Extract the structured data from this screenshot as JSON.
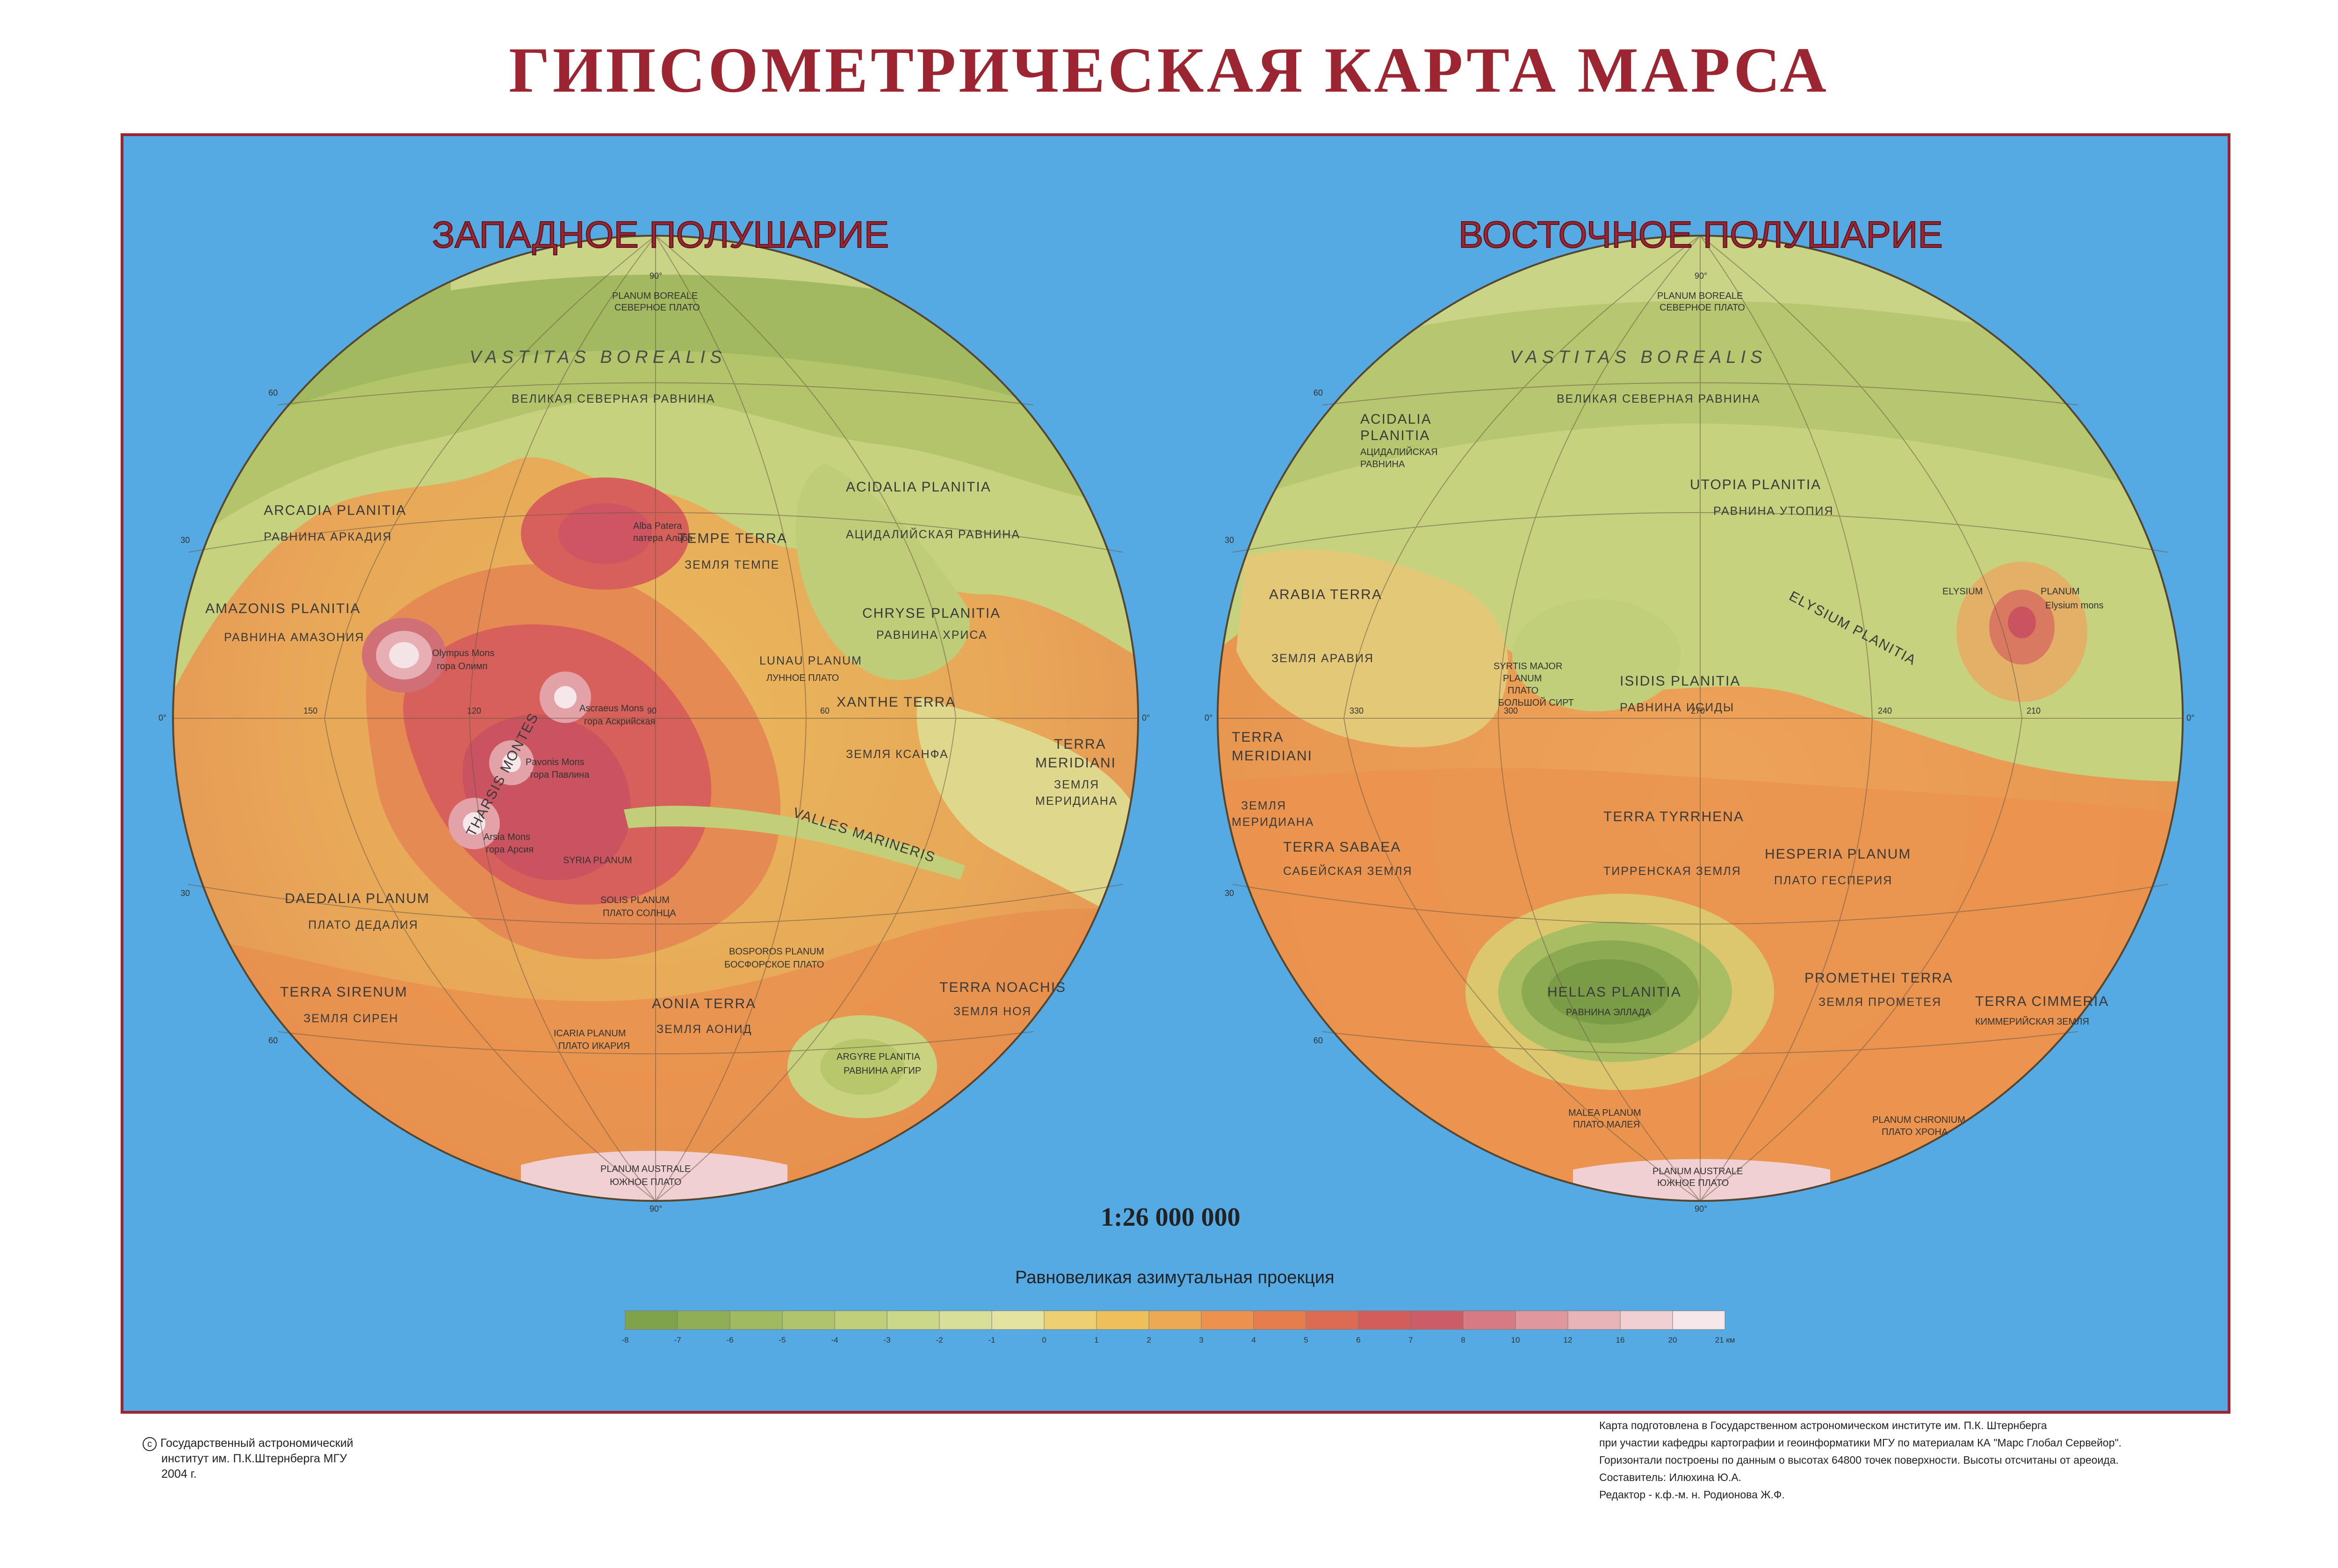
{
  "title": "ГИПСОМЕТРИЧЕСКАЯ КАРТА МАРСА",
  "colors": {
    "title": "#9b2530",
    "ocean": "#55aae3",
    "frame": "#9b2530"
  },
  "west": {
    "title": "ЗАПАДНОЕ ПОЛУШАРИЕ",
    "labels": [
      {
        "text": "VASTITAS BOREALIS",
        "style": "lg"
      },
      {
        "text": "ВЕЛИКАЯ СЕВЕРНАЯ РАВНИНА",
        "style": "ru"
      },
      {
        "text": "ARCADIA PLANITIA",
        "style": "md"
      },
      {
        "text": "РАВНИНА АРКАДИЯ",
        "style": "ru"
      },
      {
        "text": "AMAZONIS PLANITIA",
        "style": "md"
      },
      {
        "text": "РАВНИНА АМАЗОНИЯ",
        "style": "ru"
      },
      {
        "text": "ACIDALIA PLANITIA",
        "style": "md"
      },
      {
        "text": "АЦИДАЛИЙСКАЯ РАВНИНА",
        "style": "ru"
      },
      {
        "text": "TEMPE TERRA",
        "style": "md"
      },
      {
        "text": "ЗЕМЛЯ ТЕМПЕ",
        "style": "ru"
      },
      {
        "text": "CHRYSE PLANITIA",
        "style": "md"
      },
      {
        "text": "РАВНИНА ХРИСА",
        "style": "ru"
      },
      {
        "text": "LUNAU PLANUM",
        "style": "ru"
      },
      {
        "text": "ЛУННОЕ ПЛАТО",
        "style": "sm"
      },
      {
        "text": "XANTHE TERRA",
        "style": "md"
      },
      {
        "text": "ЗЕМЛЯ КСАНФА",
        "style": "ru"
      },
      {
        "text": "TERRA",
        "style": "md"
      },
      {
        "text": "MERIDIANI",
        "style": "md"
      },
      {
        "text": "ЗЕМЛЯ",
        "style": "ru"
      },
      {
        "text": "МЕРИДИАНА",
        "style": "ru"
      },
      {
        "text": "Olympus Mons",
        "style": "sm"
      },
      {
        "text": "гора Олимп",
        "style": "sm"
      },
      {
        "text": "Ascraeus Mons",
        "style": "sm"
      },
      {
        "text": "гора Аскрийская",
        "style": "sm"
      },
      {
        "text": "Pavonis Mons",
        "style": "sm"
      },
      {
        "text": "гора Павлина",
        "style": "sm"
      },
      {
        "text": "Arsia Mons",
        "style": "sm"
      },
      {
        "text": "гора Арсия",
        "style": "sm"
      },
      {
        "text": "Alba Patera",
        "style": "sm"
      },
      {
        "text": "патера Альба",
        "style": "sm"
      },
      {
        "text": "THARSIS MONTES",
        "style": "md"
      },
      {
        "text": "VALLES MARINERIS",
        "style": "md"
      },
      {
        "text": "DAEDALIA PLANUM",
        "style": "md"
      },
      {
        "text": "ПЛАТО ДЕДАЛИЯ",
        "style": "ru"
      },
      {
        "text": "SYRIA PLANUM",
        "style": "sm"
      },
      {
        "text": "SOLIS PLANUM",
        "style": "sm"
      },
      {
        "text": "ПЛАТО СОЛНЦА",
        "style": "sm"
      },
      {
        "text": "TERRA SIRENUM",
        "style": "md"
      },
      {
        "text": "ЗЕМЛЯ СИРЕН",
        "style": "ru"
      },
      {
        "text": "AONIA TERRA",
        "style": "md"
      },
      {
        "text": "ЗЕМЛЯ АОНИД",
        "style": "ru"
      },
      {
        "text": "ICARIA PLANUM",
        "style": "sm"
      },
      {
        "text": "ПЛАТО ИКАРИЯ",
        "style": "sm"
      },
      {
        "text": "BOSPOROS PLANUM",
        "style": "sm"
      },
      {
        "text": "БОСФОРСКОЕ ПЛАТО",
        "style": "sm"
      },
      {
        "text": "ARGYRE PLANITIA",
        "style": "sm"
      },
      {
        "text": "РАВНИНА АРГИР",
        "style": "sm"
      },
      {
        "text": "TERRA NOACHIS",
        "style": "md"
      },
      {
        "text": "ЗЕМЛЯ НОЯ",
        "style": "ru"
      },
      {
        "text": "PLANUM BOREALE",
        "style": "sm"
      },
      {
        "text": "СЕВЕРНОЕ ПЛАТО",
        "style": "sm"
      },
      {
        "text": "PLANUM AUSTRALE",
        "style": "sm"
      },
      {
        "text": "ЮЖНОЕ ПЛАТО",
        "style": "sm"
      }
    ]
  },
  "east": {
    "title": "ВОСТОЧНОЕ ПОЛУШАРИЕ",
    "labels": [
      {
        "text": "VASTITAS BOREALIS",
        "style": "lg"
      },
      {
        "text": "ВЕЛИКАЯ СЕВЕРНАЯ РАВНИНА",
        "style": "ru"
      },
      {
        "text": "ACIDALIA",
        "style": "md"
      },
      {
        "text": "PLANITIA",
        "style": "md"
      },
      {
        "text": "АЦИДАЛИЙСКАЯ",
        "style": "sm"
      },
      {
        "text": "РАВНИНА",
        "style": "sm"
      },
      {
        "text": "UTOPIA PLANITIA",
        "style": "md"
      },
      {
        "text": "РАВНИНА УТОПИЯ",
        "style": "ru"
      },
      {
        "text": "ARABIA TERRA",
        "style": "md"
      },
      {
        "text": "ЗЕМЛЯ АРАВИЯ",
        "style": "ru"
      },
      {
        "text": "ISIDIS PLANITIA",
        "style": "md"
      },
      {
        "text": "РАВНИНА ИСИДЫ",
        "style": "ru"
      },
      {
        "text": "SYRTIS MAJOR",
        "style": "sm"
      },
      {
        "text": "PLANUM",
        "style": "sm"
      },
      {
        "text": "ПЛАТО",
        "style": "sm"
      },
      {
        "text": "БОЛЬШОЙ СИРТ",
        "style": "sm"
      },
      {
        "text": "ELYSIUM PLANITIA",
        "style": "md"
      },
      {
        "text": "ELYSIUM",
        "style": "sm"
      },
      {
        "text": "PLANUM",
        "style": "sm"
      },
      {
        "text": "Elysium mons",
        "style": "sm"
      },
      {
        "text": "TERRA",
        "style": "md"
      },
      {
        "text": "MERIDIANI",
        "style": "md"
      },
      {
        "text": "ЗЕМЛЯ",
        "style": "ru"
      },
      {
        "text": "МЕРИДИАНА",
        "style": "ru"
      },
      {
        "text": "TERRA TYRRHENA",
        "style": "md"
      },
      {
        "text": "ТИРРЕНСКАЯ ЗЕМЛЯ",
        "style": "ru"
      },
      {
        "text": "TERRA SABAEA",
        "style": "md"
      },
      {
        "text": "САБЕЙСКАЯ ЗЕМЛЯ",
        "style": "ru"
      },
      {
        "text": "HESPERIA PLANUM",
        "style": "md"
      },
      {
        "text": "ПЛАТО ГЕСПЕРИЯ",
        "style": "ru"
      },
      {
        "text": "HELLAS PLANITIA",
        "style": "md"
      },
      {
        "text": "РАВНИНА ЭЛЛАДА",
        "style": "sm"
      },
      {
        "text": "PROMETHEI TERRA",
        "style": "md"
      },
      {
        "text": "ЗЕМЛЯ ПРОМЕТЕЯ",
        "style": "ru"
      },
      {
        "text": "TERRA CIMMERIA",
        "style": "md"
      },
      {
        "text": "КИММЕРИЙСКАЯ ЗЕМЛЯ",
        "style": "sm"
      },
      {
        "text": "PLANUM CHRONIUM",
        "style": "sm"
      },
      {
        "text": "ПЛАТО ХРОНА",
        "style": "sm"
      },
      {
        "text": "MALEA PLANUM",
        "style": "sm"
      },
      {
        "text": "ПЛАТО МАЛЕЯ",
        "style": "sm"
      },
      {
        "text": "PLANUM BOREALE",
        "style": "sm"
      },
      {
        "text": "СЕВЕРНОЕ ПЛАТО",
        "style": "sm"
      },
      {
        "text": "PLANUM AUSTRALE",
        "style": "sm"
      },
      {
        "text": "ЮЖНОЕ ПЛАТО",
        "style": "sm"
      }
    ]
  },
  "graticule_labels": {
    "w_equator_left": "0°",
    "w_equator_right": "0°",
    "w_lon": [
      "150",
      "120",
      "90",
      "60"
    ],
    "w_lat_n": [
      "30",
      "60"
    ],
    "w_lat_s": [
      "30",
      "60"
    ],
    "w_north": "90°",
    "w_south": "90°",
    "e_equator_left": "0°",
    "e_equator_right": "0°",
    "e_lon": [
      "330",
      "300",
      "270",
      "240",
      "210"
    ],
    "e_lat_n": [
      "30",
      "60"
    ],
    "e_lat_s": [
      "30",
      "60"
    ],
    "e_north": "90°",
    "e_south": "90°"
  },
  "scale": "1:26 000 000",
  "projection": "Равновеликая азимутальная проекция",
  "legend": {
    "unit": "км",
    "ticks": [
      "-8",
      "-7",
      "-6",
      "-5",
      "-4",
      "-3",
      "-2",
      "-1",
      "0",
      "1",
      "2",
      "3",
      "4",
      "5",
      "6",
      "7",
      "8",
      "10",
      "12",
      "16",
      "20",
      "21 км"
    ],
    "colors": [
      "#7fa34b",
      "#8fae55",
      "#9fba60",
      "#b0c46b",
      "#bfcf7a",
      "#cbd88a",
      "#d8df98",
      "#e4e3a0",
      "#ecd072",
      "#eec05a",
      "#eea954",
      "#ec924e",
      "#e57d4d",
      "#dc6b54",
      "#d25e5c",
      "#cc5d66",
      "#d77a83",
      "#e0979e",
      "#e8b4b8",
      "#f0d0d2",
      "#f6e8ea"
    ]
  },
  "copyright": {
    "symbol": "c",
    "line1": "Государственный астрономический",
    "line2": "институт им. П.К.Штернберга МГУ",
    "line3": "2004 г."
  },
  "credits": [
    "Карта подготовлена в  Государственном астрономическом институте им. П.К. Штернберга",
    "при участии кафедры картографии и геоинформатики МГУ по материалам КА \"Марс Глобал Сервейор\".",
    "Горизонтали построены по данным о высотах 64800 точек поверхности. Высоты отсчитаны от ареоида.",
    "Составитель: Илюхина Ю.А.",
    "Редактор - к.ф.-м. н. Родионова Ж.Ф."
  ]
}
